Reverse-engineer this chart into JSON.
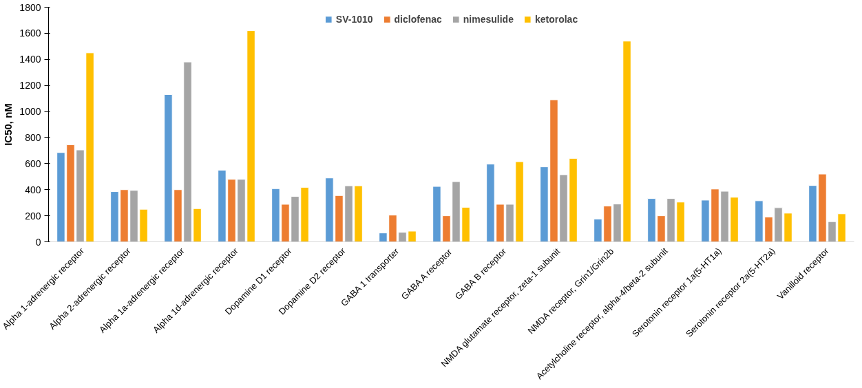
{
  "chart_data": {
    "type": "bar",
    "ylabel": "IC50, nM",
    "categories": [
      "Alpha 1-adrenergic receptor",
      "Alpha 2-adrenergic receptor",
      "Alpha 1a-adrenergic receptor",
      "Alpha 1d-adrenergic receptor",
      "Dopamine D1 receptor",
      "Dopamine D2 receptor",
      "GABA 1 transporter",
      "GABA A receptor",
      "GABA B receptor",
      "NMDA glutamate receptor, zeta-1 subunit",
      "NMDA receptor, Grin1/Grin2b",
      "Acetylcholine receptor, alpha-4/beta-2 subunit",
      "Serotonin receptor 1a(5-HT1a)",
      "Serotonin receptor 2a(5-HT2a)",
      "Vanilloid receptor"
    ],
    "series": [
      {
        "name": "SV-1010",
        "color": "#5b9bd5",
        "values": [
          685,
          385,
          1130,
          550,
          408,
          490,
          68,
          425,
          597,
          575,
          175,
          332,
          320,
          315,
          432
        ]
      },
      {
        "name": "diclofenac",
        "color": "#ed7d31",
        "values": [
          745,
          400,
          400,
          480,
          288,
          355,
          205,
          200,
          288,
          1090,
          275,
          200,
          405,
          190,
          520
        ]
      },
      {
        "name": "nimesulide",
        "color": "#a5a5a5",
        "values": [
          705,
          395,
          1380,
          480,
          348,
          430,
          73,
          462,
          288,
          515,
          290,
          332,
          388,
          262,
          155
        ]
      },
      {
        "name": "ketorolac",
        "color": "#ffc000",
        "values": [
          1450,
          250,
          255,
          1620,
          418,
          430,
          82,
          265,
          615,
          640,
          1540,
          305,
          342,
          220,
          215
        ]
      }
    ],
    "ylim": [
      0,
      1800
    ],
    "yticks": [
      0,
      200,
      400,
      600,
      800,
      1000,
      1200,
      1400,
      1600,
      1800
    ],
    "grid": false,
    "legend": "top"
  }
}
